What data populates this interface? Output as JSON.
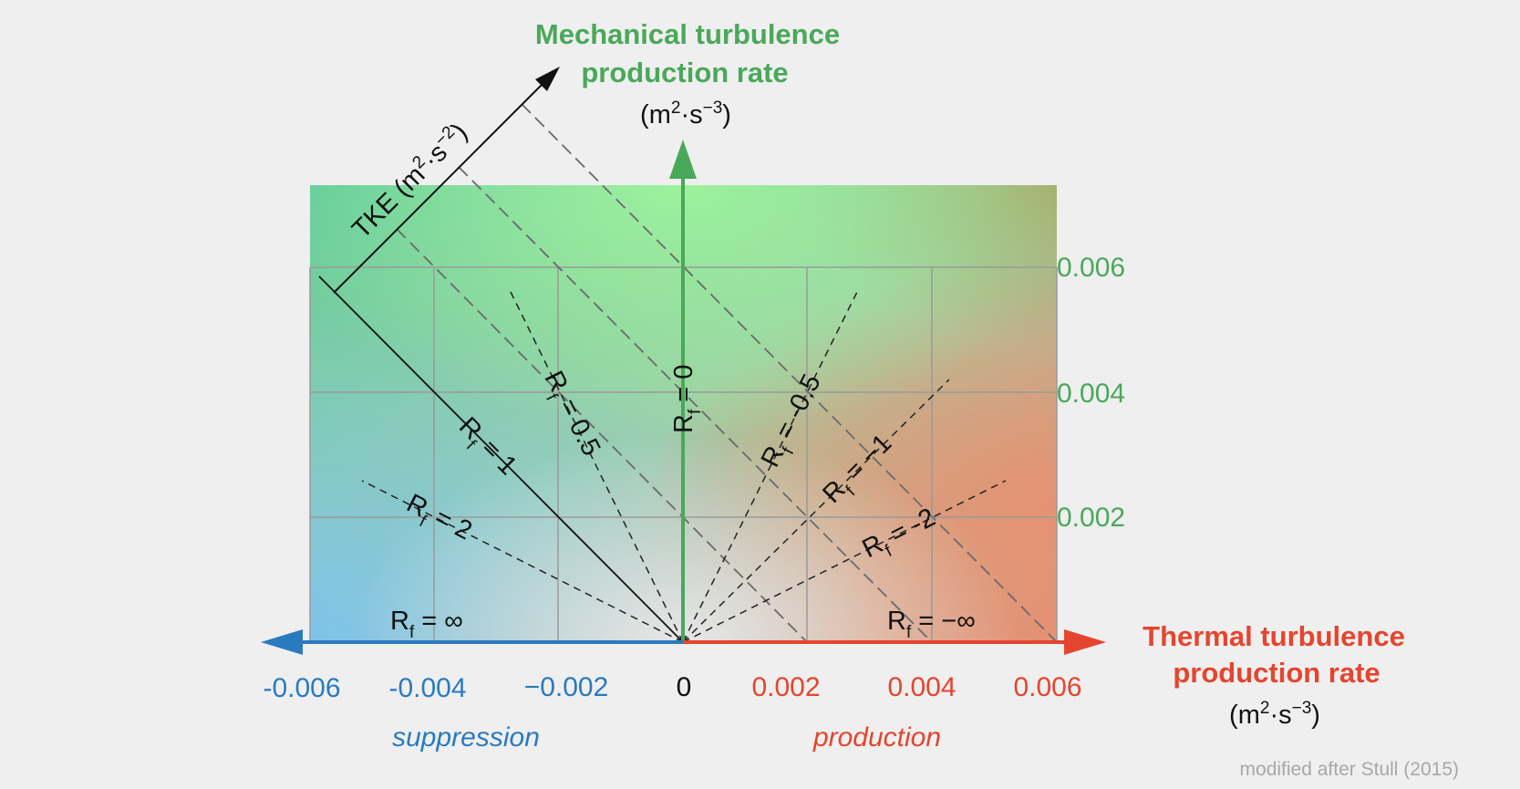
{
  "titles": {
    "y_title_line1": "Mechanical turbulence",
    "y_title_line2": "production rate",
    "x_title_line1": "Thermal turbulence",
    "x_title_line2": "production rate",
    "unit_prefix": "(m",
    "unit_exp1": "2",
    "unit_mid": "·s",
    "unit_exp2": "−3",
    "unit_suffix": ")"
  },
  "tke_axis": {
    "label": "TKE (m",
    "exp1": "2",
    "mid": "·s",
    "exp2": "−2",
    "suffix": ")"
  },
  "x_ticks": {
    "neg6": "-0.006",
    "neg4": "-0.004",
    "neg2": "−0.002",
    "zero": "0",
    "pos2": "0.002",
    "pos4": "0.004",
    "pos6": "0.006"
  },
  "y_ticks": {
    "t2": "0.002",
    "t4": "0.004",
    "t6": "0.006"
  },
  "regions": {
    "left": "suppression",
    "right": "production"
  },
  "rf_labels": {
    "symbol": "R",
    "subscript": "f",
    "inf_pos": " = ∞",
    "two": " = 2",
    "one": " = 1",
    "half": " = 0.5",
    "zero": " = 0",
    "neg_half": " = -0.5",
    "neg_one": " = −1",
    "neg_two": " = -2",
    "inf_neg": " = −∞"
  },
  "credit": "modified after Stull (2015)",
  "colors": {
    "green": "#4aa85a",
    "red": "#e5452e",
    "blue": "#2a7ac0"
  }
}
